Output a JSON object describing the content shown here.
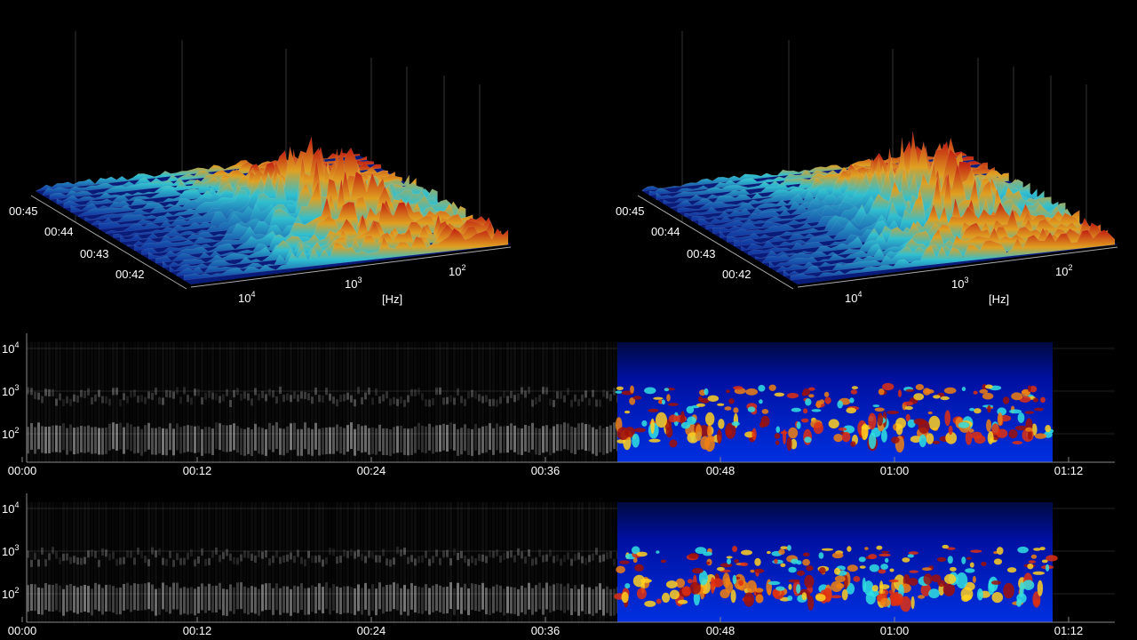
{
  "panels3d": [
    {
      "time_labels": [
        "00:45",
        "00:44",
        "00:43",
        "00:42"
      ],
      "freq_labels": [
        {
          "base": "10",
          "exp": "4"
        },
        {
          "base": "10",
          "exp": "3"
        },
        {
          "base": "10",
          "exp": "2"
        }
      ],
      "unit": "[Hz]"
    },
    {
      "time_labels": [
        "00:45",
        "00:44",
        "00:43",
        "00:42"
      ],
      "freq_labels": [
        {
          "base": "10",
          "exp": "4"
        },
        {
          "base": "10",
          "exp": "3"
        },
        {
          "base": "10",
          "exp": "2"
        }
      ],
      "unit": "[Hz]"
    }
  ],
  "spectrograms": [
    {
      "freq_labels": [
        {
          "base": "10",
          "exp": "4"
        },
        {
          "base": "10",
          "exp": "3"
        },
        {
          "base": "10",
          "exp": "2"
        }
      ],
      "time_labels": [
        "00:00",
        "00:12",
        "00:24",
        "00:36",
        "00:48",
        "01:00",
        "01:12"
      ]
    },
    {
      "freq_labels": [
        {
          "base": "10",
          "exp": "4"
        },
        {
          "base": "10",
          "exp": "3"
        },
        {
          "base": "10",
          "exp": "2"
        }
      ],
      "time_labels": [
        "00:00",
        "00:12",
        "00:24",
        "00:36",
        "00:48",
        "01:00",
        "01:12"
      ]
    }
  ]
}
